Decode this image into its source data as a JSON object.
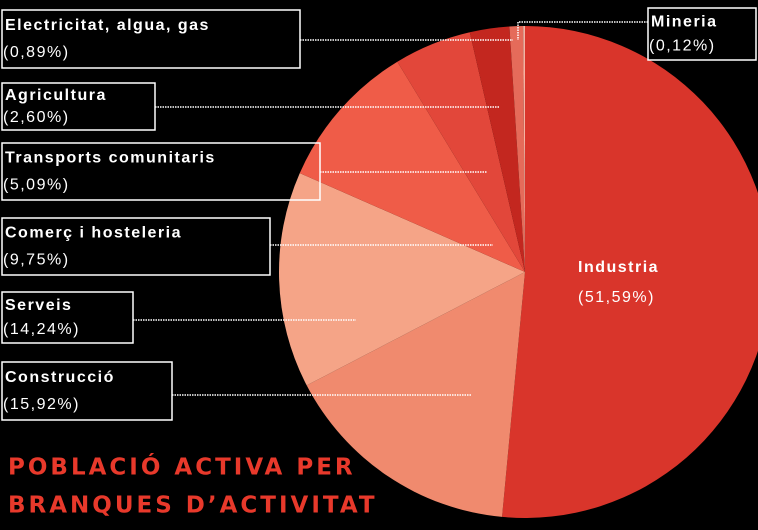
{
  "chart_data": {
    "type": "pie",
    "title": [
      "POBLACIÓ ACTIVA PER",
      "BRANQUES D’ACTIVITAT"
    ],
    "categories": [
      "Industria",
      "Construcció",
      "Serveis",
      "Comerç i hosteleria",
      "Transports comunitaris",
      "Agricultura",
      "Electricitat, algua, gas",
      "Mineria"
    ],
    "values": [
      51.59,
      15.92,
      14.24,
      9.75,
      5.09,
      2.6,
      0.89,
      0.12
    ],
    "value_labels": [
      "(51,59%)",
      "(15,92%)",
      "(14,24%)",
      "(9,75%)",
      "(5,09%)",
      "(2,60%)",
      "(0,89%)",
      "(0,12%)"
    ],
    "colors": [
      "#d9352b",
      "#f08a6e",
      "#f5a487",
      "#ef5c48",
      "#e2473a",
      "#c3271f",
      "#e56b5a",
      "#f5b3a3"
    ]
  }
}
